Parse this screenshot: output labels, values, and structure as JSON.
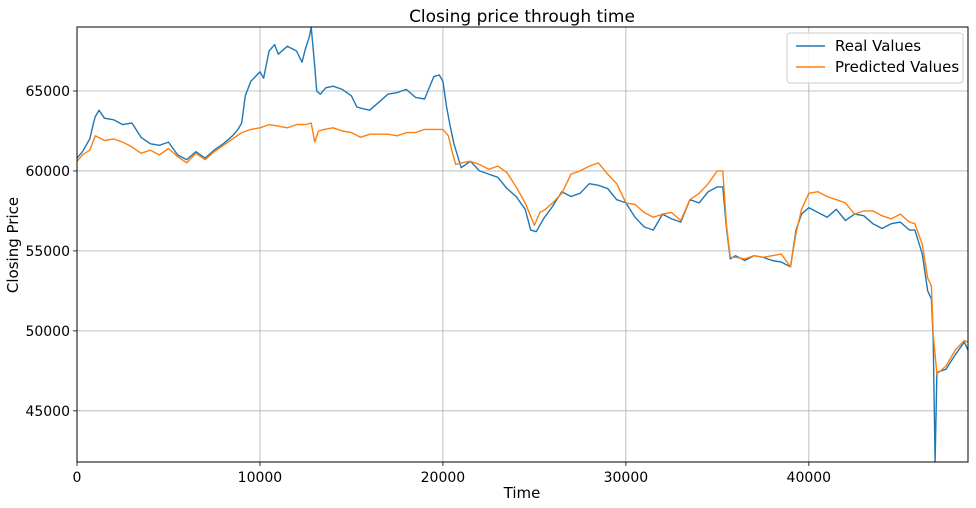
{
  "chart_data": {
    "type": "line",
    "title": "Closing price through time",
    "xlabel": "Time",
    "ylabel": "Closing Price",
    "xlim": [
      0,
      48700
    ],
    "ylim": [
      41800,
      69000
    ],
    "xticks": [
      0,
      10000,
      20000,
      30000,
      40000
    ],
    "yticks": [
      45000,
      50000,
      55000,
      60000,
      65000
    ],
    "grid": true,
    "legend_position": "top-right",
    "series": [
      {
        "name": "Real Values",
        "color": "#1f77b4",
        "x": [
          0,
          300,
          700,
          900,
          1000,
          1200,
          1500,
          2000,
          2500,
          3000,
          3500,
          4000,
          4500,
          5000,
          5500,
          6000,
          6500,
          7000,
          7500,
          8000,
          8500,
          8800,
          9000,
          9200,
          9500,
          10000,
          10200,
          10500,
          10800,
          11000,
          11500,
          12000,
          12300,
          12500,
          12700,
          12800,
          13000,
          13100,
          13300,
          13600,
          14000,
          14500,
          15000,
          15300,
          15600,
          16000,
          16500,
          17000,
          17500,
          18000,
          18500,
          19000,
          19500,
          19800,
          20000,
          20200,
          20400,
          20600,
          21000,
          21500,
          22000,
          22500,
          23000,
          23500,
          24000,
          24500,
          24800,
          25100,
          25500,
          26000,
          26500,
          27000,
          27500,
          28000,
          28500,
          29000,
          29500,
          30000,
          30500,
          31000,
          31500,
          32000,
          32500,
          33000,
          33500,
          34000,
          34500,
          35000,
          35300,
          35500,
          35700,
          36000,
          36500,
          37000,
          37500,
          38000,
          38500,
          39000,
          39300,
          39600,
          40000,
          40500,
          41000,
          41500,
          42000,
          42500,
          43000,
          43500,
          44000,
          44500,
          45000,
          45500,
          45800,
          46200,
          46500,
          46700,
          46800,
          46900,
          47000,
          47500,
          48000,
          48500,
          48700
        ],
        "y": [
          60800,
          61200,
          62000,
          63000,
          63400,
          63800,
          63300,
          63200,
          62900,
          63000,
          62100,
          61700,
          61600,
          61800,
          61000,
          60700,
          61200,
          60800,
          61300,
          61700,
          62200,
          62600,
          63000,
          64700,
          65600,
          66200,
          65800,
          67500,
          67900,
          67300,
          67800,
          67500,
          66800,
          67700,
          68400,
          69000,
          66500,
          65000,
          64800,
          65200,
          65300,
          65100,
          64700,
          64000,
          63900,
          63800,
          64300,
          64800,
          64900,
          65100,
          64600,
          64500,
          65900,
          66000,
          65600,
          64000,
          62800,
          61700,
          60200,
          60600,
          60000,
          59800,
          59600,
          58900,
          58400,
          57600,
          56300,
          56200,
          57000,
          57800,
          58700,
          58400,
          58600,
          59200,
          59100,
          58900,
          58200,
          58000,
          57100,
          56500,
          56300,
          57300,
          57000,
          56800,
          58200,
          58000,
          58700,
          59000,
          59000,
          56400,
          54500,
          54700,
          54400,
          54700,
          54600,
          54400,
          54300,
          54000,
          56300,
          57300,
          57700,
          57400,
          57100,
          57600,
          56900,
          57300,
          57200,
          56700,
          56400,
          56700,
          56800,
          56300,
          56300,
          54800,
          52500,
          52000,
          49500,
          41800,
          47400,
          47600,
          48500,
          49300,
          48800
        ]
      },
      {
        "name": "Predicted Values",
        "color": "#ff7f0e",
        "x": [
          0,
          300,
          700,
          1000,
          1500,
          2000,
          2500,
          3000,
          3500,
          4000,
          4500,
          5000,
          5500,
          6000,
          6500,
          7000,
          7500,
          8000,
          8500,
          9000,
          9500,
          10000,
          10500,
          11000,
          11500,
          12000,
          12500,
          12800,
          13000,
          13200,
          13500,
          14000,
          14500,
          15000,
          15500,
          16000,
          16500,
          17000,
          17500,
          18000,
          18500,
          19000,
          19500,
          20000,
          20300,
          20500,
          20700,
          21000,
          21500,
          22000,
          22500,
          23000,
          23500,
          24000,
          24500,
          25000,
          25300,
          25600,
          26000,
          26500,
          27000,
          27500,
          28000,
          28500,
          29000,
          29500,
          30000,
          30500,
          31000,
          31500,
          32000,
          32500,
          33000,
          33500,
          34000,
          34500,
          35000,
          35300,
          35500,
          35700,
          36000,
          36500,
          37000,
          37500,
          38000,
          38500,
          39000,
          39300,
          39600,
          40000,
          40500,
          41000,
          41500,
          42000,
          42500,
          43000,
          43500,
          44000,
          44500,
          45000,
          45500,
          45800,
          46200,
          46500,
          46700,
          46800,
          47000,
          47500,
          48000,
          48500,
          48700
        ],
        "y": [
          60600,
          61000,
          61300,
          62200,
          61900,
          62000,
          61800,
          61500,
          61100,
          61300,
          61000,
          61400,
          60900,
          60500,
          61100,
          60700,
          61200,
          61600,
          62000,
          62400,
          62600,
          62700,
          62900,
          62800,
          62700,
          62900,
          62900,
          63000,
          61800,
          62500,
          62600,
          62700,
          62500,
          62400,
          62100,
          62300,
          62300,
          62300,
          62200,
          62400,
          62400,
          62600,
          62600,
          62600,
          62200,
          61200,
          60400,
          60500,
          60600,
          60400,
          60100,
          60300,
          59900,
          59000,
          58000,
          56600,
          57400,
          57600,
          58000,
          58600,
          59800,
          60000,
          60300,
          60500,
          59800,
          59200,
          58000,
          57900,
          57400,
          57100,
          57300,
          57400,
          56900,
          58200,
          58600,
          59200,
          60000,
          60000,
          56600,
          54600,
          54600,
          54500,
          54700,
          54600,
          54700,
          54800,
          54000,
          56100,
          57600,
          58600,
          58700,
          58400,
          58200,
          58000,
          57300,
          57500,
          57500,
          57200,
          57000,
          57300,
          56800,
          56700,
          55400,
          53300,
          52800,
          49800,
          47300,
          47800,
          48800,
          49400,
          49300
        ]
      }
    ]
  }
}
